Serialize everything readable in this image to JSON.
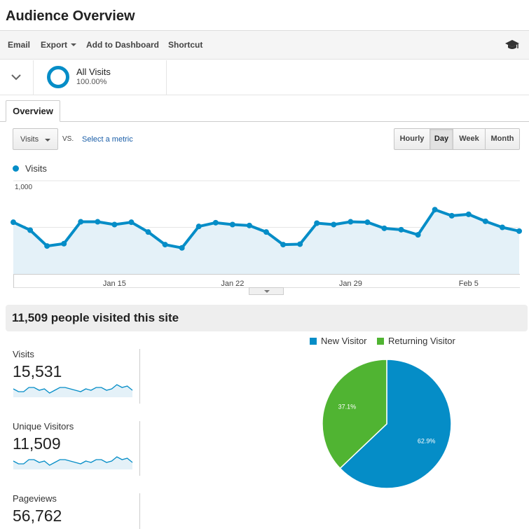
{
  "header": {
    "title": "Audience Overview"
  },
  "toolbar": {
    "email": "Email",
    "export": "Export",
    "add_to_dashboard": "Add to Dashboard",
    "shortcut": "Shortcut",
    "help_icon": "graduation-cap-icon"
  },
  "segment": {
    "name": "All Visits",
    "percent": "100.00%",
    "color": "#058dc7"
  },
  "tabs": {
    "overview": "Overview"
  },
  "controls": {
    "metric": "Visits",
    "vs": "VS.",
    "select_metric": "Select a metric",
    "granularity": [
      "Hourly",
      "Day",
      "Week",
      "Month"
    ],
    "active_granularity": "Day"
  },
  "chart_data": [
    {
      "type": "area",
      "series": [
        {
          "name": "Visits",
          "color": "#058dc7",
          "values": [
            555,
            470,
            300,
            325,
            560,
            560,
            530,
            555,
            450,
            315,
            280,
            510,
            550,
            530,
            520,
            450,
            315,
            320,
            545,
            530,
            560,
            555,
            490,
            475,
            420,
            690,
            625,
            640,
            565,
            500,
            460
          ]
        }
      ],
      "xticks": [
        "Jan 15",
        "Jan 22",
        "Jan 29",
        "Feb 5"
      ],
      "yticks": [
        "500",
        "1,000"
      ],
      "ylim": [
        0,
        1000
      ],
      "grid": true,
      "legend": "top-left"
    },
    {
      "type": "pie",
      "slices": [
        {
          "label": "New Visitor",
          "value": 62.9,
          "display": "62.9%",
          "color": "#058dc7"
        },
        {
          "label": "Returning Visitor",
          "value": 37.1,
          "display": "37.1%",
          "color": "#50b432"
        }
      ],
      "legend": "top"
    }
  ],
  "summary": {
    "headline": "11,509 people visited this site"
  },
  "metrics": [
    {
      "label": "Visits",
      "value": "15,531",
      "spark": [
        5,
        3,
        3,
        6,
        6,
        4,
        5,
        2,
        4,
        6,
        6,
        5,
        4,
        3,
        5,
        4,
        6,
        6,
        4,
        5,
        8,
        6,
        7,
        4
      ]
    },
    {
      "label": "Unique Visitors",
      "value": "11,509",
      "spark": [
        5,
        3,
        3,
        6,
        6,
        4,
        5,
        2,
        4,
        6,
        6,
        5,
        4,
        3,
        5,
        4,
        6,
        6,
        4,
        5,
        8,
        6,
        7,
        4
      ]
    },
    {
      "label": "Pageviews",
      "value": "56,762",
      "spark": []
    }
  ]
}
